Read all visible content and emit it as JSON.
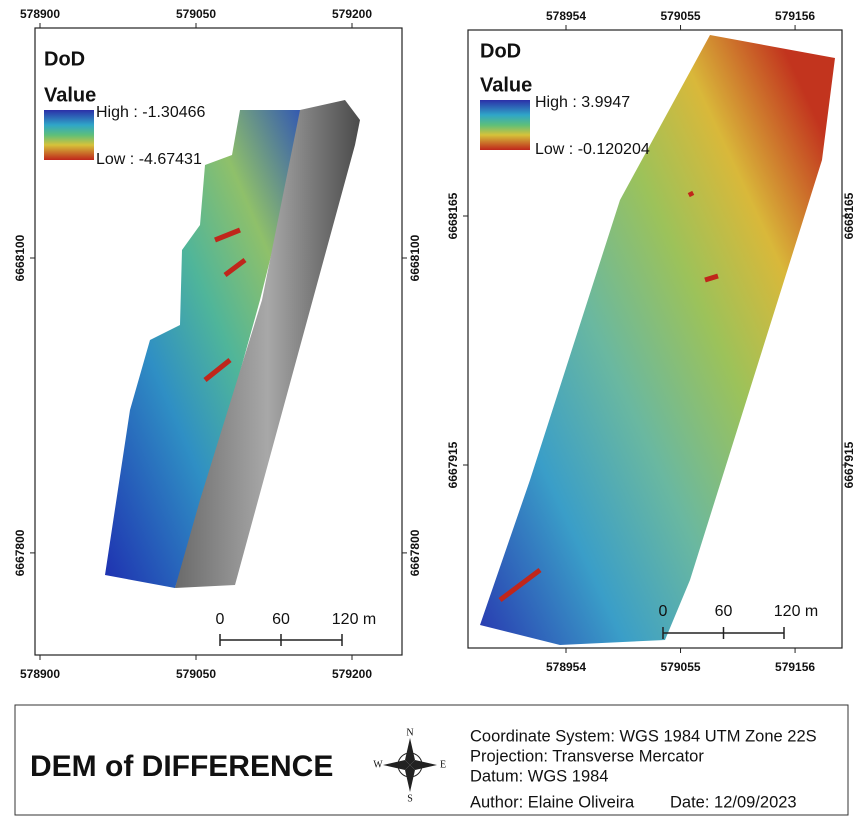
{
  "maps": [
    {
      "title": "DoD",
      "legend_title": "Value",
      "legend_high": "High : -1.30466",
      "legend_low": "Low : -4.67431",
      "x_ticks": [
        578900,
        579050,
        579200
      ],
      "y_ticks": [
        6668100,
        6667800
      ],
      "scale_labels": [
        "0",
        "60",
        "120 m"
      ]
    },
    {
      "title": "DoD",
      "legend_title": "Value",
      "legend_high": "High : 3.9947",
      "legend_low": "Low : -0.120204",
      "x_ticks": [
        578954,
        579055,
        579156
      ],
      "y_ticks": [
        6668165,
        6667915
      ],
      "scale_labels": [
        "0",
        "60",
        "120 m"
      ]
    }
  ],
  "footer": {
    "title": "DEM of DIFFERENCE",
    "compass": {
      "n": "N",
      "s": "S",
      "w": "W",
      "e": "E"
    },
    "coordinate_system": "Coordinate System: WGS 1984 UTM Zone 22S",
    "projection": "Projection: Transverse Mercator",
    "datum": "Datum: WGS 1984",
    "author": "Author: Elaine Oliveira",
    "date": "Date: 12/09/2023"
  }
}
